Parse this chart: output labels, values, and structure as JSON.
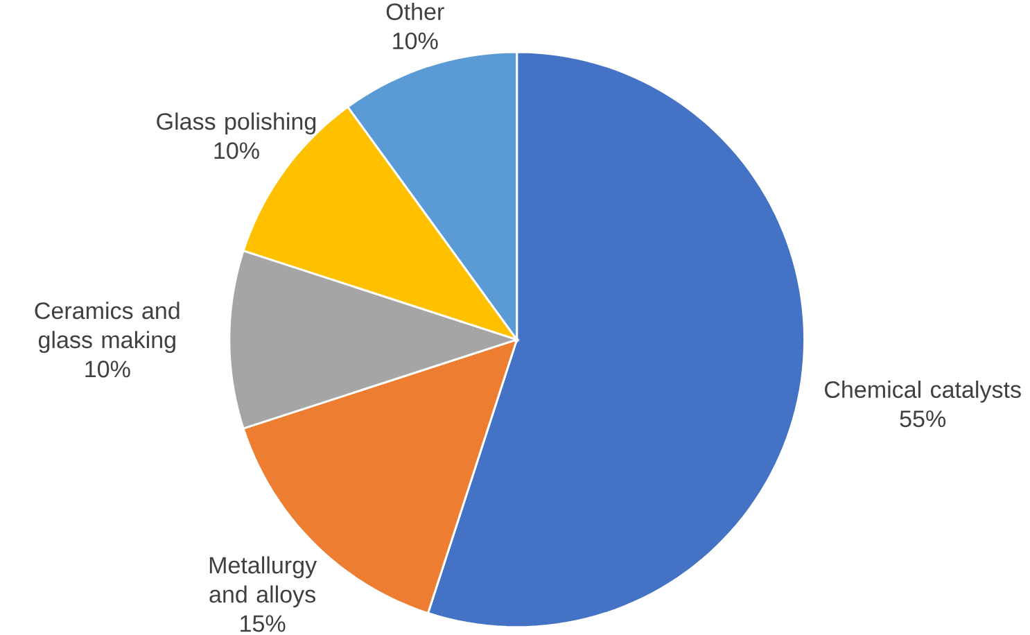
{
  "chart_data": {
    "type": "pie",
    "categories": [
      "Chemical catalysts",
      "Metallurgy and alloys",
      "Ceramics and glass making",
      "Glass polishing",
      "Other"
    ],
    "values": [
      55,
      15,
      10,
      10,
      10
    ],
    "value_labels": [
      "55%",
      "15%",
      "10%",
      "10%",
      "10%"
    ],
    "colors": [
      "#4472c4",
      "#ed7d31",
      "#a5a5a5",
      "#ffc000",
      "#5b9bd5"
    ]
  }
}
